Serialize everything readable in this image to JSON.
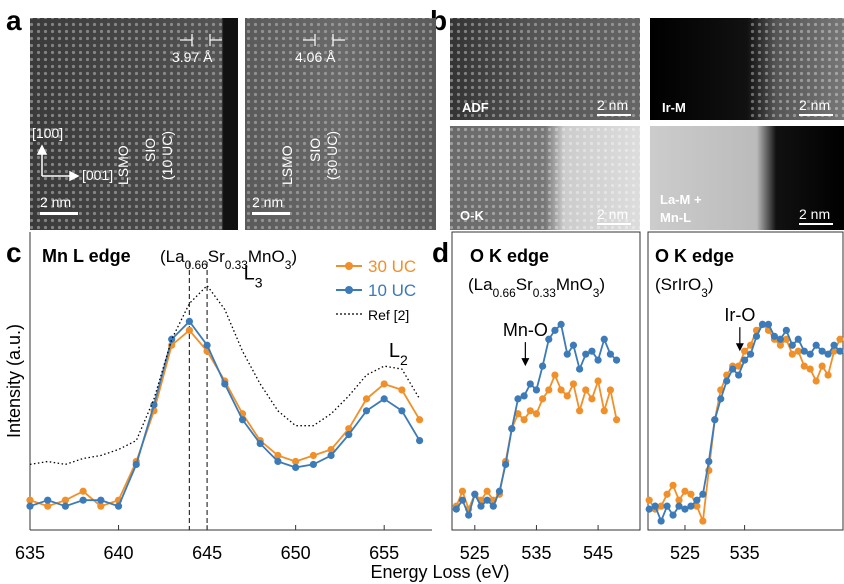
{
  "figure": {
    "panel_labels": [
      "a",
      "b",
      "c",
      "d"
    ],
    "x_label": "Energy Loss (eV)"
  },
  "panel_a": {
    "left": {
      "spacing": "3.97 Å",
      "axis_v": "[100]",
      "axis_h": "[001]",
      "layer1": "LSMO",
      "layer2": "SIO",
      "layer2_thickness": "(10 UC)",
      "scale": "2 nm"
    },
    "right": {
      "spacing": "4.06 Å",
      "layer1": "LSMO",
      "layer2": "SIO",
      "layer2_thickness": "(30 UC)",
      "scale": "2 nm"
    }
  },
  "panel_b": {
    "tiles": [
      {
        "label": "ADF",
        "scale": "2 nm"
      },
      {
        "label": "Ir-M",
        "scale": "2 nm"
      },
      {
        "label": "O-K",
        "scale": "2 nm"
      },
      {
        "label": "La-M +",
        "label2": "Mn-L",
        "scale": "2 nm"
      }
    ]
  },
  "chart_data": [
    {
      "type": "line",
      "title": "Mn L edge",
      "subtitle_parts": [
        "(La",
        "0.66",
        "Sr",
        "0.33",
        "MnO",
        "3",
        ")"
      ],
      "y_label": "Intensity (a.u.)",
      "xlim": [
        635,
        657.7
      ],
      "ylim": [
        0,
        1
      ],
      "xticks": [
        635,
        640,
        645,
        650,
        655
      ],
      "reference_lines": [
        644,
        645
      ],
      "annotations": [
        [
          "L",
          "3"
        ],
        [
          "L",
          "2"
        ]
      ],
      "legend": "upper right",
      "x": [
        635,
        636,
        637,
        638,
        639,
        640,
        641,
        642,
        643,
        644,
        645,
        646,
        647,
        648,
        649,
        650,
        651,
        652,
        653,
        654,
        655,
        656,
        657
      ],
      "series": [
        {
          "name": "30 UC",
          "color": "#f0902a",
          "values": [
            0.1,
            0.08,
            0.1,
            0.13,
            0.08,
            0.1,
            0.23,
            0.4,
            0.62,
            0.67,
            0.6,
            0.5,
            0.39,
            0.3,
            0.25,
            0.23,
            0.25,
            0.27,
            0.34,
            0.44,
            0.49,
            0.47,
            0.37
          ]
        },
        {
          "name": "10 UC",
          "color": "#3c7ab8",
          "values": [
            0.08,
            0.1,
            0.08,
            0.1,
            0.1,
            0.08,
            0.22,
            0.42,
            0.64,
            0.7,
            0.62,
            0.49,
            0.37,
            0.29,
            0.23,
            0.21,
            0.22,
            0.25,
            0.32,
            0.4,
            0.44,
            0.4,
            0.3
          ]
        },
        {
          "name": "Ref [2]",
          "color": "#000000",
          "style": "dotted",
          "values": [
            0.22,
            0.23,
            0.22,
            0.24,
            0.25,
            0.27,
            0.3,
            0.44,
            0.64,
            0.76,
            0.82,
            0.74,
            0.6,
            0.49,
            0.4,
            0.35,
            0.35,
            0.39,
            0.45,
            0.52,
            0.55,
            0.54,
            0.44
          ]
        }
      ]
    },
    {
      "type": "line",
      "title": "O K edge",
      "subtitle_parts": [
        "(La",
        "0.66",
        "Sr",
        "0.33",
        "MnO",
        "3",
        ")"
      ],
      "xlim": [
        521.3,
        551.8
      ],
      "ylim": [
        0,
        1
      ],
      "xticks": [
        525,
        535,
        545
      ],
      "annotations": [
        [
          "Mn-O"
        ]
      ],
      "x": [
        522,
        523,
        524,
        525,
        526,
        527,
        528,
        529,
        530,
        531,
        532,
        533,
        534,
        535,
        536,
        537,
        538,
        539,
        540,
        541,
        542,
        543,
        544,
        545,
        546,
        547,
        548
      ],
      "series": [
        {
          "name": "30 UC",
          "color": "#f0902a",
          "values": [
            0.08,
            0.13,
            0.07,
            0.12,
            0.1,
            0.13,
            0.1,
            0.12,
            0.23,
            0.34,
            0.39,
            0.37,
            0.4,
            0.39,
            0.44,
            0.47,
            0.52,
            0.47,
            0.45,
            0.49,
            0.4,
            0.47,
            0.44,
            0.5,
            0.4,
            0.47,
            0.37
          ]
        },
        {
          "name": "10 UC",
          "color": "#3c7ab8",
          "values": [
            0.07,
            0.1,
            0.05,
            0.12,
            0.08,
            0.1,
            0.08,
            0.13,
            0.22,
            0.34,
            0.44,
            0.45,
            0.49,
            0.47,
            0.55,
            0.64,
            0.67,
            0.69,
            0.59,
            0.62,
            0.54,
            0.59,
            0.6,
            0.57,
            0.64,
            0.59,
            0.57
          ]
        }
      ]
    },
    {
      "type": "line",
      "title": "O K edge",
      "subtitle_parts": [
        "(SrIrO",
        "3",
        ")"
      ],
      "xlim": [
        518.8,
        551.5
      ],
      "ylim": [
        0,
        1
      ],
      "xticks": [
        525,
        535
      ],
      "annotations": [
        [
          "Ir-O"
        ]
      ],
      "x": [
        519,
        520,
        521,
        522,
        523,
        524,
        525,
        526,
        527,
        528,
        529,
        530,
        531,
        532,
        533,
        534,
        535,
        536,
        537,
        538,
        539,
        540,
        541,
        542,
        543,
        544,
        545,
        546,
        547,
        548,
        549,
        550,
        551
      ],
      "series": [
        {
          "name": "30 UC",
          "color": "#f0902a",
          "values": [
            0.1,
            0.07,
            0.08,
            0.12,
            0.15,
            0.1,
            0.13,
            0.12,
            0.08,
            0.03,
            0.2,
            0.37,
            0.47,
            0.52,
            0.55,
            0.55,
            0.6,
            0.62,
            0.67,
            0.69,
            0.67,
            0.64,
            0.62,
            0.64,
            0.59,
            0.6,
            0.55,
            0.54,
            0.5,
            0.55,
            0.52,
            0.6,
            0.64
          ]
        },
        {
          "name": "10 UC",
          "color": "#3c7ab8",
          "values": [
            0.07,
            0.08,
            0.03,
            0.08,
            0.05,
            0.08,
            0.07,
            0.08,
            0.1,
            0.12,
            0.23,
            0.37,
            0.44,
            0.5,
            0.54,
            0.52,
            0.57,
            0.59,
            0.65,
            0.69,
            0.69,
            0.65,
            0.64,
            0.67,
            0.62,
            0.64,
            0.6,
            0.59,
            0.62,
            0.6,
            0.59,
            0.62,
            0.6
          ]
        }
      ]
    }
  ]
}
